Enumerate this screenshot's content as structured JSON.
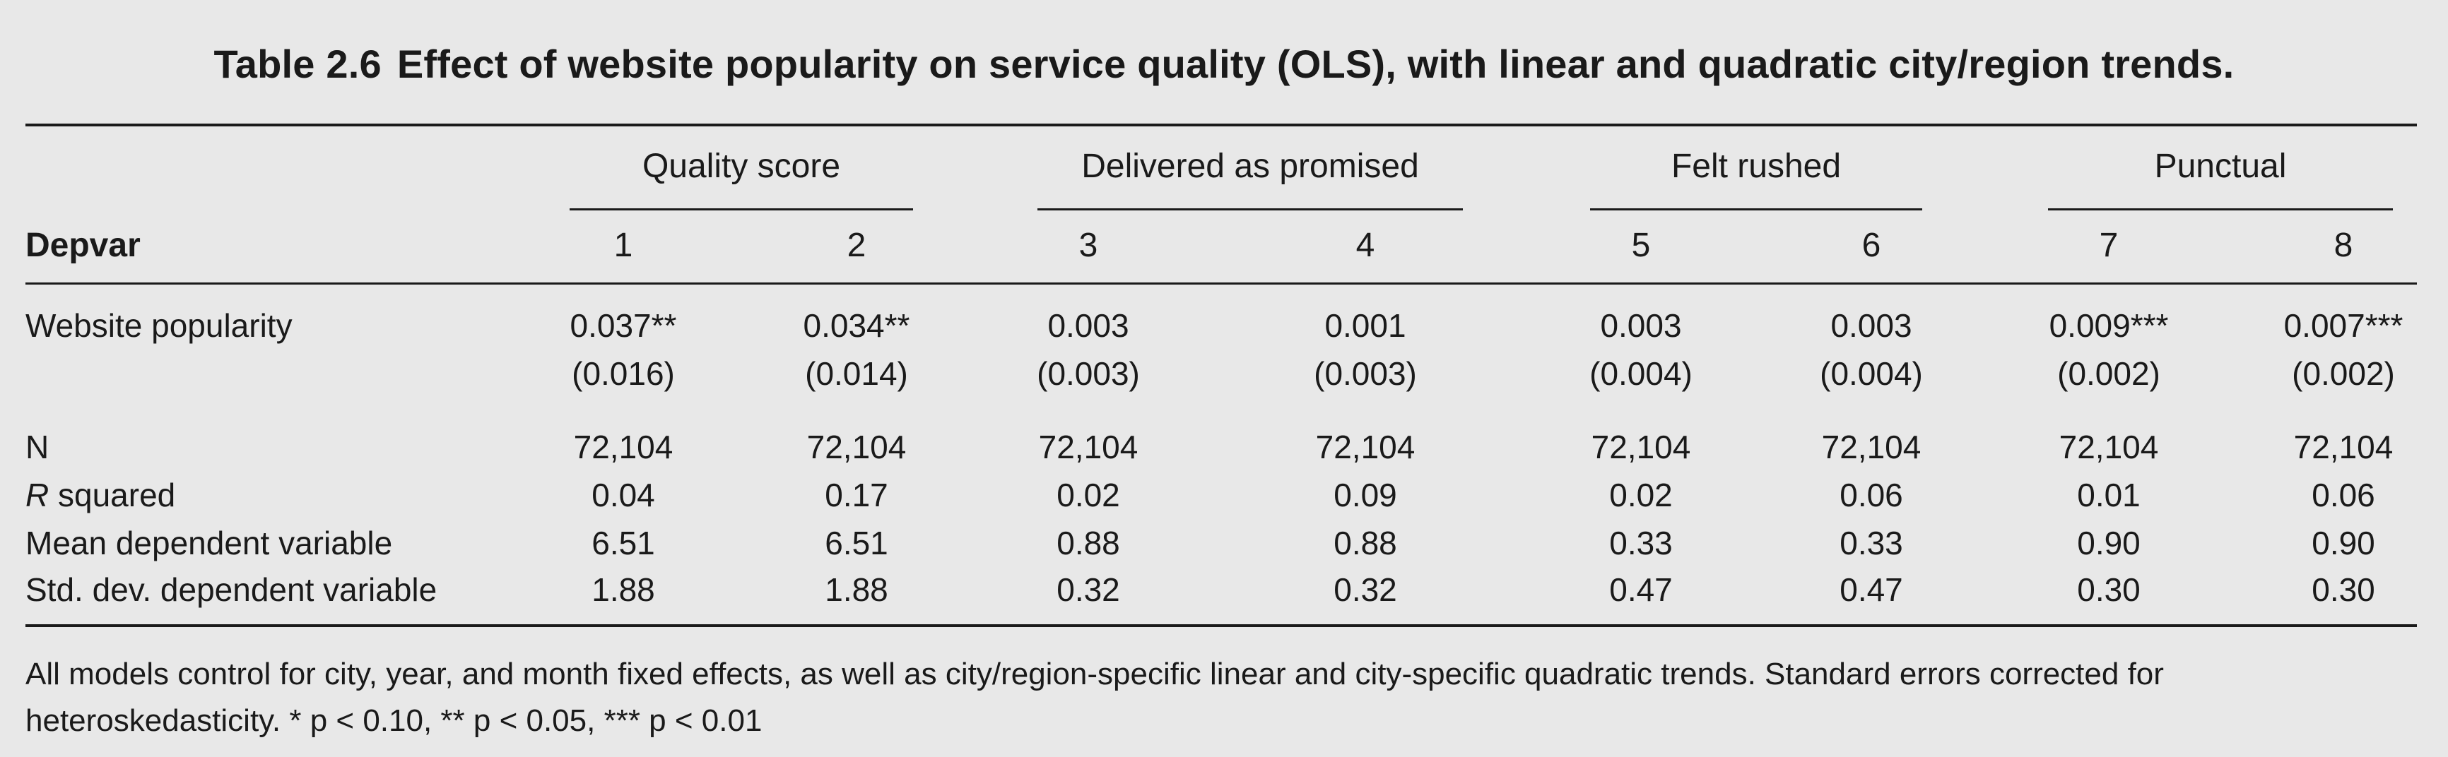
{
  "caption": {
    "label": "Table 2.6",
    "title": "Effect of website popularity on service quality (OLS), with linear and quadratic city/region trends."
  },
  "groups": [
    "Quality score",
    "Delivered as promised",
    "Felt rushed",
    "Punctual"
  ],
  "depvar_label": "Depvar",
  "columns": [
    "1",
    "2",
    "3",
    "4",
    "5",
    "6",
    "7",
    "8"
  ],
  "rows": {
    "website_popularity": {
      "label": "Website popularity",
      "coef": [
        "0.037**",
        "0.034**",
        "0.003",
        "0.001",
        "0.003",
        "0.003",
        "0.009***",
        "0.007***"
      ],
      "se": [
        "(0.016)",
        "(0.014)",
        "(0.003)",
        "(0.003)",
        "(0.004)",
        "(0.004)",
        "(0.002)",
        "(0.002)"
      ]
    },
    "n": {
      "label": "N",
      "values": [
        "72,104",
        "72,104",
        "72,104",
        "72,104",
        "72,104",
        "72,104",
        "72,104",
        "72,104"
      ]
    },
    "r_squared": {
      "label_italic": "R",
      "label_rest": " squared",
      "values": [
        "0.04",
        "0.17",
        "0.02",
        "0.09",
        "0.02",
        "0.06",
        "0.01",
        "0.06"
      ]
    },
    "mean_dep": {
      "label": "Mean dependent variable",
      "values": [
        "6.51",
        "6.51",
        "0.88",
        "0.88",
        "0.33",
        "0.33",
        "0.90",
        "0.90"
      ]
    },
    "sd_dep": {
      "label": "Std. dev. dependent variable",
      "values": [
        "1.88",
        "1.88",
        "0.32",
        "0.32",
        "0.47",
        "0.47",
        "0.30",
        "0.30"
      ]
    }
  },
  "note": "All models control for city, year, and month fixed effects, as well as city/region-specific linear and city-specific quadratic trends. Standard errors corrected for heteroskedasticity. * p < 0.10, ** p < 0.05, *** p < 0.01"
}
